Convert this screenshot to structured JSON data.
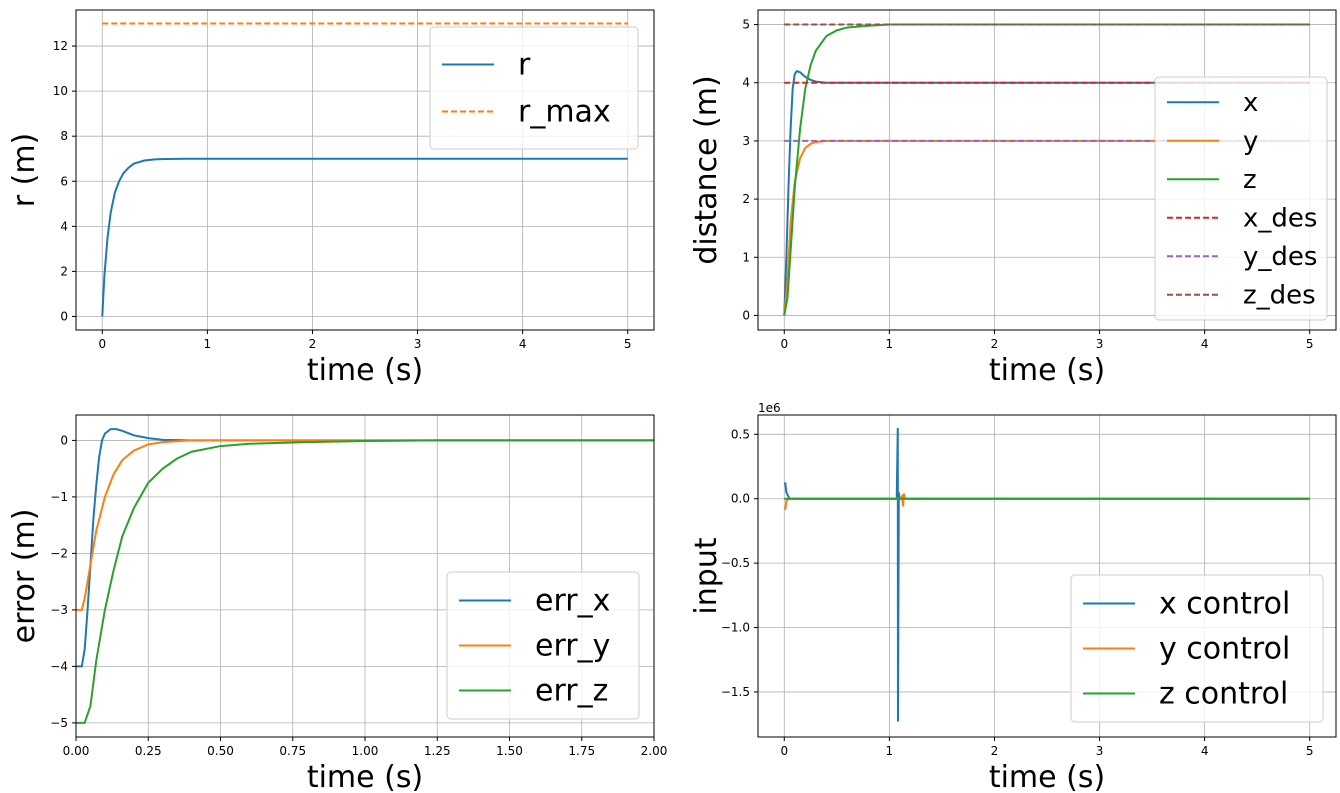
{
  "chart_data": [
    {
      "type": "line",
      "xlabel": "time (s)",
      "ylabel": "r (m)",
      "xlim": [
        -0.25,
        5.25
      ],
      "ylim": [
        -0.6,
        13.6
      ],
      "xticks": [
        "0",
        "1",
        "2",
        "3",
        "4",
        "5"
      ],
      "yticks": [
        "0",
        "2",
        "4",
        "6",
        "8",
        "10",
        "12"
      ],
      "grid": true,
      "legend_position": "top-right",
      "series": [
        {
          "name": "r",
          "style": "solid",
          "color": "#1f77b4",
          "x": [
            0,
            0.02,
            0.05,
            0.08,
            0.12,
            0.16,
            0.2,
            0.25,
            0.3,
            0.4,
            0.5,
            0.6,
            0.8,
            1.0,
            1.5,
            2,
            3,
            4,
            5
          ],
          "y": [
            0,
            1.8,
            3.5,
            4.6,
            5.5,
            6.0,
            6.35,
            6.6,
            6.78,
            6.92,
            6.97,
            6.99,
            7.0,
            7.0,
            7.0,
            7.0,
            7.0,
            7.0,
            7.0
          ]
        },
        {
          "name": "r_max",
          "style": "dashed",
          "color": "#ff7f0e",
          "x": [
            0,
            5
          ],
          "y": [
            13,
            13
          ]
        }
      ]
    },
    {
      "type": "line",
      "xlabel": "time (s)",
      "ylabel": "distance (m)",
      "xlim": [
        -0.25,
        5.25
      ],
      "ylim": [
        -0.25,
        5.25
      ],
      "xticks": [
        "0",
        "1",
        "2",
        "3",
        "4",
        "5"
      ],
      "yticks": [
        "0",
        "1",
        "2",
        "3",
        "4",
        "5"
      ],
      "grid": true,
      "legend_position": "right",
      "series": [
        {
          "name": "x",
          "style": "solid",
          "color": "#1f77b4",
          "x": [
            0,
            0.02,
            0.04,
            0.06,
            0.08,
            0.1,
            0.12,
            0.15,
            0.2,
            0.25,
            0.3,
            0.4,
            0.5,
            1,
            5
          ],
          "y": [
            0,
            1.0,
            2.2,
            3.2,
            3.9,
            4.15,
            4.2,
            4.18,
            4.1,
            4.05,
            4.02,
            4.0,
            4.0,
            4.0,
            4.0
          ]
        },
        {
          "name": "y",
          "style": "solid",
          "color": "#ff7f0e",
          "x": [
            0,
            0.03,
            0.06,
            0.1,
            0.15,
            0.2,
            0.25,
            0.3,
            0.4,
            0.5,
            1,
            5
          ],
          "y": [
            0,
            0.6,
            1.6,
            2.3,
            2.7,
            2.88,
            2.95,
            2.98,
            3.0,
            3.0,
            3.0,
            3.0
          ]
        },
        {
          "name": "z",
          "style": "solid",
          "color": "#2ca02c",
          "x": [
            0,
            0.03,
            0.06,
            0.1,
            0.15,
            0.2,
            0.25,
            0.3,
            0.4,
            0.5,
            0.6,
            0.8,
            1.0,
            1.5,
            5
          ],
          "y": [
            0,
            0.3,
            1.1,
            2.2,
            3.2,
            3.9,
            4.3,
            4.55,
            4.8,
            4.9,
            4.95,
            4.98,
            5.0,
            5.0,
            5.0
          ]
        },
        {
          "name": "x_des",
          "style": "dashed",
          "color": "#d62728",
          "x": [
            0,
            5
          ],
          "y": [
            4,
            4
          ]
        },
        {
          "name": "y_des",
          "style": "dashed",
          "color": "#9467bd",
          "x": [
            0,
            5
          ],
          "y": [
            3,
            3
          ]
        },
        {
          "name": "z_des",
          "style": "dashed",
          "color": "#8c564b",
          "x": [
            0,
            5
          ],
          "y": [
            5,
            5
          ]
        }
      ]
    },
    {
      "type": "line",
      "xlabel": "time (s)",
      "ylabel": "error (m)",
      "xlim": [
        0,
        2
      ],
      "ylim": [
        -5.25,
        0.45
      ],
      "xticks": [
        "0.00",
        "0.25",
        "0.50",
        "0.75",
        "1.00",
        "1.25",
        "1.50",
        "1.75",
        "2.00"
      ],
      "yticks": [
        "-5",
        "-4",
        "-3",
        "-2",
        "-1",
        "0"
      ],
      "grid": true,
      "legend_position": "bottom-right",
      "series": [
        {
          "name": "err_x",
          "style": "solid",
          "color": "#1f77b4",
          "x": [
            0,
            0.02,
            0.03,
            0.04,
            0.05,
            0.06,
            0.07,
            0.08,
            0.09,
            0.1,
            0.12,
            0.14,
            0.16,
            0.18,
            0.2,
            0.25,
            0.3,
            0.4,
            0.5,
            2
          ],
          "y": [
            -4,
            -4,
            -3.7,
            -3.0,
            -2.2,
            -1.4,
            -0.8,
            -0.3,
            0.0,
            0.12,
            0.2,
            0.2,
            0.17,
            0.13,
            0.09,
            0.04,
            0.01,
            0,
            0,
            0
          ]
        },
        {
          "name": "err_y",
          "style": "solid",
          "color": "#ff7f0e",
          "x": [
            0,
            0.02,
            0.03,
            0.05,
            0.07,
            0.1,
            0.13,
            0.16,
            0.2,
            0.25,
            0.3,
            0.4,
            0.5,
            2
          ],
          "y": [
            -3,
            -3,
            -2.8,
            -2.2,
            -1.6,
            -1.0,
            -0.6,
            -0.35,
            -0.18,
            -0.07,
            -0.03,
            0,
            0,
            0
          ]
        },
        {
          "name": "err_z",
          "style": "solid",
          "color": "#2ca02c",
          "x": [
            0,
            0.03,
            0.05,
            0.07,
            0.1,
            0.13,
            0.16,
            0.2,
            0.25,
            0.3,
            0.35,
            0.4,
            0.5,
            0.6,
            0.8,
            1.0,
            1.25,
            2
          ],
          "y": [
            -5,
            -5,
            -4.7,
            -3.9,
            -3.0,
            -2.3,
            -1.7,
            -1.2,
            -0.75,
            -0.5,
            -0.32,
            -0.2,
            -0.1,
            -0.06,
            -0.03,
            -0.01,
            0,
            0
          ]
        }
      ]
    },
    {
      "type": "line",
      "xlabel": "time (s)",
      "ylabel": "input",
      "scale_label": "1e6",
      "xlim": [
        -0.25,
        5.25
      ],
      "ylim": [
        -1.85,
        0.65
      ],
      "xticks": [
        "0",
        "1",
        "2",
        "3",
        "4",
        "5"
      ],
      "yticks": [
        "-1.5",
        "-1.0",
        "-0.5",
        "0.0",
        "0.5"
      ],
      "grid": true,
      "legend_position": "bottom-right",
      "series": [
        {
          "name": "x control",
          "style": "solid",
          "color": "#1f77b4",
          "x": [
            0,
            0.01,
            0.02,
            0.05,
            0.1,
            1.07,
            1.08,
            1.082,
            1.09,
            1.095,
            1.1,
            5
          ],
          "y": [
            0.12,
            0.12,
            0.05,
            0.0,
            0.0,
            0.0,
            0.55,
            -1.73,
            0.05,
            0.0,
            0.0,
            0.0
          ]
        },
        {
          "name": "y control",
          "style": "solid",
          "color": "#ff7f0e",
          "x": [
            0,
            0.01,
            0.02,
            0.04,
            0.08,
            1.1,
            1.12,
            1.13,
            1.14,
            1.15,
            5
          ],
          "y": [
            -0.08,
            -0.08,
            -0.02,
            0.0,
            0.0,
            0.0,
            0.02,
            -0.06,
            0.04,
            0.0,
            0.0
          ]
        },
        {
          "name": "z control",
          "style": "solid",
          "color": "#2ca02c",
          "x": [
            0,
            5
          ],
          "y": [
            0,
            0
          ]
        }
      ]
    }
  ]
}
